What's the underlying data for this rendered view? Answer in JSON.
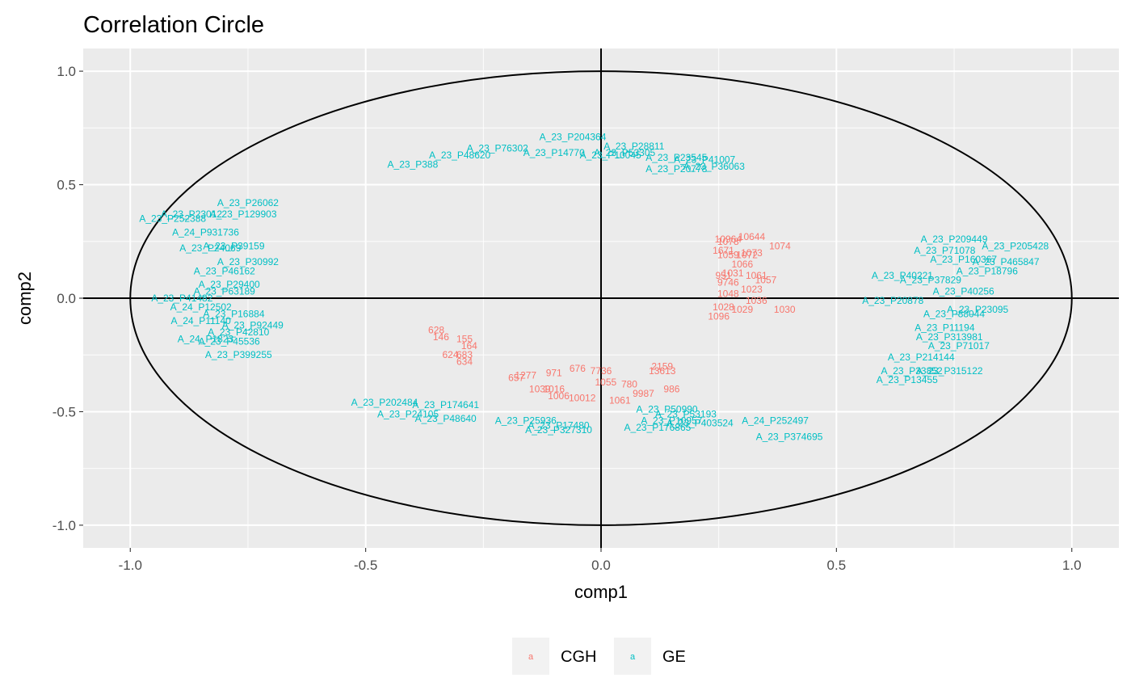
{
  "chart_data": {
    "type": "scatter",
    "title": "Correlation Circle",
    "xlabel": "comp1",
    "ylabel": "comp2",
    "xlim": [
      -1.1,
      1.1
    ],
    "ylim": [
      -1.1,
      1.1
    ],
    "x_ticks": [
      -1.0,
      -0.5,
      0.0,
      0.5,
      1.0
    ],
    "x_tick_labels": [
      "-1.0",
      "-0.5",
      "0.0",
      "0.5",
      "1.0"
    ],
    "y_ticks": [
      -1.0,
      -0.5,
      0.0,
      0.5,
      1.0
    ],
    "y_tick_labels": [
      "-1.0",
      "-0.5",
      "0.0",
      "0.5",
      "1.0"
    ],
    "grid": true,
    "panel_background": "#ebebeb",
    "circle_radius": 1.0,
    "legend": {
      "position": "bottom",
      "key_glyph": "a",
      "entries": [
        {
          "name": "CGH",
          "color": "#f8766d"
        },
        {
          "name": "GE",
          "color": "#00bfc4"
        }
      ]
    },
    "series": [
      {
        "name": "CGH",
        "color": "#f8766d",
        "points": [
          {
            "label": "628",
            "x": -0.35,
            "y": -0.14
          },
          {
            "label": "146",
            "x": -0.34,
            "y": -0.17
          },
          {
            "label": "155",
            "x": -0.29,
            "y": -0.18
          },
          {
            "label": "164",
            "x": -0.28,
            "y": -0.21
          },
          {
            "label": "624",
            "x": -0.32,
            "y": -0.25
          },
          {
            "label": "683",
            "x": -0.29,
            "y": -0.25
          },
          {
            "label": "634",
            "x": -0.29,
            "y": -0.28
          },
          {
            "label": "676",
            "x": -0.05,
            "y": -0.31
          },
          {
            "label": "971",
            "x": -0.1,
            "y": -0.33
          },
          {
            "label": "1277",
            "x": -0.16,
            "y": -0.34
          },
          {
            "label": "657",
            "x": -0.18,
            "y": -0.35
          },
          {
            "label": "7736",
            "x": 0.0,
            "y": -0.32
          },
          {
            "label": "2159",
            "x": 0.13,
            "y": -0.3
          },
          {
            "label": "13613",
            "x": 0.13,
            "y": -0.32
          },
          {
            "label": "780",
            "x": 0.06,
            "y": -0.38
          },
          {
            "label": "986",
            "x": 0.15,
            "y": -0.4
          },
          {
            "label": "1016",
            "x": -0.1,
            "y": -0.4
          },
          {
            "label": "1039",
            "x": -0.13,
            "y": -0.4
          },
          {
            "label": "1006",
            "x": -0.09,
            "y": -0.43
          },
          {
            "label": "9987",
            "x": 0.09,
            "y": -0.42
          },
          {
            "label": "10012",
            "x": -0.04,
            "y": -0.44
          },
          {
            "label": "1055",
            "x": 0.01,
            "y": -0.37
          },
          {
            "label": "1061",
            "x": 0.04,
            "y": -0.45
          },
          {
            "label": "10964",
            "x": 0.27,
            "y": 0.26
          },
          {
            "label": "1078",
            "x": 0.27,
            "y": 0.25
          },
          {
            "label": "10644",
            "x": 0.32,
            "y": 0.27
          },
          {
            "label": "1074",
            "x": 0.38,
            "y": 0.23
          },
          {
            "label": "1671",
            "x": 0.26,
            "y": 0.21
          },
          {
            "label": "1073",
            "x": 0.32,
            "y": 0.2
          },
          {
            "label": "1059",
            "x": 0.27,
            "y": 0.19
          },
          {
            "label": "1072",
            "x": 0.31,
            "y": 0.19
          },
          {
            "label": "1066",
            "x": 0.3,
            "y": 0.15
          },
          {
            "label": "951",
            "x": 0.26,
            "y": 0.1
          },
          {
            "label": "1031",
            "x": 0.28,
            "y": 0.11
          },
          {
            "label": "1061",
            "x": 0.33,
            "y": 0.1
          },
          {
            "label": "1057",
            "x": 0.35,
            "y": 0.08
          },
          {
            "label": "9746",
            "x": 0.27,
            "y": 0.07
          },
          {
            "label": "1023",
            "x": 0.32,
            "y": 0.04
          },
          {
            "label": "1048",
            "x": 0.27,
            "y": 0.02
          },
          {
            "label": "1036",
            "x": 0.33,
            "y": -0.01
          },
          {
            "label": "1028",
            "x": 0.26,
            "y": -0.04
          },
          {
            "label": "1030",
            "x": 0.39,
            "y": -0.05
          },
          {
            "label": "1029",
            "x": 0.3,
            "y": -0.05
          },
          {
            "label": "1096",
            "x": 0.25,
            "y": -0.08
          }
        ]
      },
      {
        "name": "GE",
        "color": "#00bfc4",
        "points": [
          {
            "label": "A_23_P204364",
            "x": -0.06,
            "y": 0.71
          },
          {
            "label": "A_23_P28811",
            "x": 0.07,
            "y": 0.67
          },
          {
            "label": "A_23_P388",
            "x": -0.4,
            "y": 0.59
          },
          {
            "label": "A_23_P48620",
            "x": -0.3,
            "y": 0.63
          },
          {
            "label": "A_23_P76302",
            "x": -0.22,
            "y": 0.66
          },
          {
            "label": "A_23_P14770",
            "x": -0.1,
            "y": 0.64
          },
          {
            "label": "A_23_P10045",
            "x": 0.02,
            "y": 0.63
          },
          {
            "label": "A_23_P53305",
            "x": 0.05,
            "y": 0.64
          },
          {
            "label": "A_23_P23545",
            "x": 0.16,
            "y": 0.62
          },
          {
            "label": "A_23_P41007",
            "x": 0.22,
            "y": 0.61
          },
          {
            "label": "A_23_P36063",
            "x": 0.24,
            "y": 0.58
          },
          {
            "label": "A_23_P20778",
            "x": 0.16,
            "y": 0.57
          },
          {
            "label": "A_23_P26062",
            "x": -0.75,
            "y": 0.42
          },
          {
            "label": "A_23_P129903",
            "x": -0.76,
            "y": 0.37
          },
          {
            "label": "A_23_P23012",
            "x": -0.87,
            "y": 0.37
          },
          {
            "label": "A_23_P252388",
            "x": -0.91,
            "y": 0.35
          },
          {
            "label": "A_24_P931736",
            "x": -0.84,
            "y": 0.29
          },
          {
            "label": "A_23_P39159",
            "x": -0.78,
            "y": 0.23
          },
          {
            "label": "A_23_P24069",
            "x": -0.83,
            "y": 0.22
          },
          {
            "label": "A_23_P30992",
            "x": -0.75,
            "y": 0.16
          },
          {
            "label": "A_23_P46162",
            "x": -0.8,
            "y": 0.12
          },
          {
            "label": "A_23_P29400",
            "x": -0.79,
            "y": 0.06
          },
          {
            "label": "A_23_P63189",
            "x": -0.8,
            "y": 0.03
          },
          {
            "label": "A_23_P41482",
            "x": -0.89,
            "y": 0.0
          },
          {
            "label": "A_24_P12502",
            "x": -0.85,
            "y": -0.04
          },
          {
            "label": "A_23_P16884",
            "x": -0.78,
            "y": -0.07
          },
          {
            "label": "A_24_P11140",
            "x": -0.85,
            "y": -0.1
          },
          {
            "label": "A_23_P92449",
            "x": -0.74,
            "y": -0.12
          },
          {
            "label": "A_23_P42810",
            "x": -0.77,
            "y": -0.15
          },
          {
            "label": "A_24_P1823",
            "x": -0.84,
            "y": -0.18
          },
          {
            "label": "A_23_P45536",
            "x": -0.79,
            "y": -0.19
          },
          {
            "label": "A_23_P399255",
            "x": -0.77,
            "y": -0.25
          },
          {
            "label": "A_23_P209449",
            "x": 0.75,
            "y": 0.26
          },
          {
            "label": "A_23_P205428",
            "x": 0.88,
            "y": 0.23
          },
          {
            "label": "A_23_P71078",
            "x": 0.73,
            "y": 0.21
          },
          {
            "label": "A_23_P160367",
            "x": 0.77,
            "y": 0.17
          },
          {
            "label": "A_23_P465847",
            "x": 0.86,
            "y": 0.16
          },
          {
            "label": "A_23_P18796",
            "x": 0.82,
            "y": 0.12
          },
          {
            "label": "A_23_P40221",
            "x": 0.64,
            "y": 0.1
          },
          {
            "label": "A_23_P37829",
            "x": 0.7,
            "y": 0.08
          },
          {
            "label": "A_23_P40256",
            "x": 0.77,
            "y": 0.03
          },
          {
            "label": "A_23_P20878",
            "x": 0.62,
            "y": -0.01
          },
          {
            "label": "A_23_P23095",
            "x": 0.8,
            "y": -0.05
          },
          {
            "label": "A_23_P88044",
            "x": 0.75,
            "y": -0.07
          },
          {
            "label": "A_23_P11194",
            "x": 0.73,
            "y": -0.13
          },
          {
            "label": "A_23_P313981",
            "x": 0.74,
            "y": -0.17
          },
          {
            "label": "A_23_P71017",
            "x": 0.76,
            "y": -0.21
          },
          {
            "label": "A_23_P214144",
            "x": 0.68,
            "y": -0.26
          },
          {
            "label": "A_23_P315122",
            "x": 0.74,
            "y": -0.32
          },
          {
            "label": "A_23_P33852",
            "x": 0.66,
            "y": -0.32
          },
          {
            "label": "A_23_P13455",
            "x": 0.65,
            "y": -0.36
          },
          {
            "label": "A_23_P202484",
            "x": -0.46,
            "y": -0.46
          },
          {
            "label": "A_23_P174641",
            "x": -0.33,
            "y": -0.47
          },
          {
            "label": "A_23_P24105",
            "x": -0.41,
            "y": -0.51
          },
          {
            "label": "A_23_P48640",
            "x": -0.33,
            "y": -0.53
          },
          {
            "label": "A_23_P25936",
            "x": -0.16,
            "y": -0.54
          },
          {
            "label": "A_23_P17480",
            "x": -0.09,
            "y": -0.56
          },
          {
            "label": "A_23_P327310",
            "x": -0.09,
            "y": -0.58
          },
          {
            "label": "A_23_P50990",
            "x": 0.14,
            "y": -0.49
          },
          {
            "label": "A_23_P53193",
            "x": 0.18,
            "y": -0.51
          },
          {
            "label": "A_23_P10957",
            "x": 0.15,
            "y": -0.54
          },
          {
            "label": "A_23_P403524",
            "x": 0.21,
            "y": -0.55
          },
          {
            "label": "A_23_P176865",
            "x": 0.12,
            "y": -0.57
          },
          {
            "label": "A_24_P252497",
            "x": 0.37,
            "y": -0.54
          },
          {
            "label": "A_23_P374695",
            "x": 0.4,
            "y": -0.61
          }
        ]
      }
    ]
  }
}
